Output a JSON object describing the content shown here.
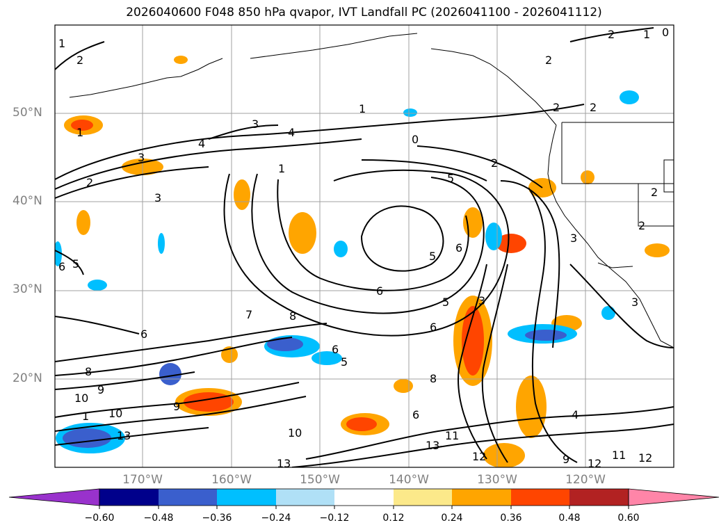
{
  "title": "2026040600 F048 850 hPa qvapor, IVT Landfall PC (2026041100 - 2026041112)",
  "map": {
    "lat_labels": [
      "50°N",
      "40°N",
      "30°N",
      "20°N"
    ],
    "lon_labels": [
      "170°W",
      "160°W",
      "150°W",
      "140°W",
      "130°W",
      "120°W"
    ],
    "contour_labels": [
      "1",
      "2",
      "2",
      "1",
      "0",
      "1",
      "3",
      "4",
      "3",
      "4",
      "1",
      "0",
      "2",
      "5",
      "2",
      "2",
      "2",
      "3",
      "3",
      "3",
      "2",
      "2",
      "1",
      "5",
      "6",
      "6",
      "5",
      "6",
      "6",
      "7",
      "8",
      "6",
      "6",
      "5",
      "8",
      "8",
      "6",
      "9",
      "9",
      "10",
      "10",
      "13",
      "13",
      "11",
      "12",
      "9",
      "11",
      "12",
      "12",
      "4",
      "13",
      "10",
      "1",
      "5",
      "2",
      "3"
    ]
  },
  "colorbar": {
    "ticks": [
      "−0.60",
      "−0.48",
      "−0.36",
      "−0.24",
      "−0.12",
      "0.12",
      "0.24",
      "0.36",
      "0.48",
      "0.60"
    ],
    "colors": [
      "#9932cc",
      "#00008b",
      "#3a5fcd",
      "#00bfff",
      "#b0e0f6",
      "#ffffff",
      "#fce98a",
      "#ffa500",
      "#ff4500",
      "#b22222",
      "#ff85a8"
    ]
  }
}
